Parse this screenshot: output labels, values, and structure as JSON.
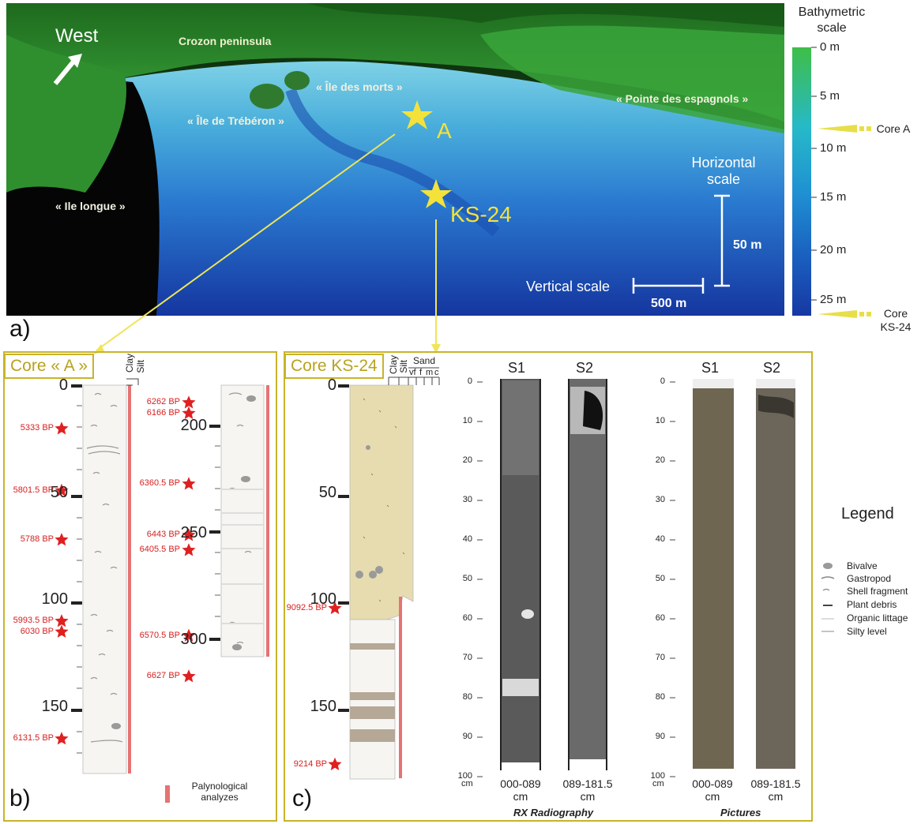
{
  "panel_a": {
    "letter": "a)",
    "labels": {
      "west": "West",
      "crozon": "Crozon peninsula",
      "ile_morts": "« Île des morts »",
      "ile_treberon": "« Île de Trébéron »",
      "pointe": "« Pointe des espagnols »",
      "ile_longue": "« Ile longue »",
      "site_a": "A",
      "site_ks": "KS-24",
      "horizontal_scale": "Horizontal scale",
      "horizontal_value": "50 m",
      "vertical_scale": "Vertical scale",
      "vertical_value": "500 m"
    },
    "bathymetric": {
      "title": "Bathymetric scale",
      "ticks": [
        "0 m",
        "5 m",
        "10 m",
        "15 m",
        "20 m",
        "25 m"
      ],
      "core_a": "Core A",
      "core_ks": "Core KS-24",
      "colors": [
        "#3fbe47",
        "#26b9c9",
        "#1f8fd2",
        "#1a5fbf",
        "#1638a3"
      ]
    }
  },
  "panel_b": {
    "letter": "b)",
    "title": "Core « A »",
    "grain": [
      "Clay",
      "Silt"
    ],
    "depth_ticks_left": [
      {
        "label": "0",
        "depth": 0
      },
      {
        "label": "50",
        "depth": 50
      },
      {
        "label": "100",
        "depth": 100
      },
      {
        "label": "150",
        "depth": 150
      }
    ],
    "depth_ticks_right": [
      {
        "label": "200",
        "depth": 200
      },
      {
        "label": "250",
        "depth": 250
      },
      {
        "label": "300",
        "depth": 300
      }
    ],
    "dates_left": [
      {
        "label": "5333 BP",
        "depth": 20
      },
      {
        "label": "5801.5 BP",
        "depth": 49
      },
      {
        "label": "5788 BP",
        "depth": 72
      },
      {
        "label": "5993.5 BP",
        "depth": 110
      },
      {
        "label": "6030 BP",
        "depth": 115
      },
      {
        "label": "6131.5 BP",
        "depth": 165
      }
    ],
    "dates_right": [
      {
        "label": "6262 BP",
        "depth": 189
      },
      {
        "label": "6166 BP",
        "depth": 194
      },
      {
        "label": "6360.5 BP",
        "depth": 227
      },
      {
        "label": "6443 BP",
        "depth": 251
      },
      {
        "label": "6405.5 BP",
        "depth": 258
      },
      {
        "label": "6570.5 BP",
        "depth": 298
      },
      {
        "label": "6627 BP",
        "depth": 317
      }
    ],
    "palyno_legend": "Palynological analyzes"
  },
  "panel_c": {
    "letter": "c)",
    "title": "Core KS-24",
    "grain": [
      "Clay",
      "Silt"
    ],
    "sand": "Sand",
    "sand_classes": [
      "vf",
      "f",
      "m",
      "c"
    ],
    "depth_ticks": [
      {
        "label": "0",
        "depth": 0
      },
      {
        "label": "50",
        "depth": 50
      },
      {
        "label": "100",
        "depth": 100
      },
      {
        "label": "150",
        "depth": 150
      }
    ],
    "dates": [
      {
        "label": "9092.5 BP",
        "depth": 104
      },
      {
        "label": "9214 BP",
        "depth": 177
      }
    ],
    "scale_ticks": [
      "0",
      "10",
      "20",
      "30",
      "40",
      "50",
      "60",
      "70",
      "80",
      "90",
      "100"
    ],
    "scale_unit": "cm",
    "rx": {
      "s1": "S1",
      "s2": "S2",
      "cap1": "000-089 cm",
      "cap2": "089-181.5 cm",
      "footer": "RX Radiography"
    },
    "pictures": {
      "s1": "S1",
      "s2": "S2",
      "cap1": "000-089 cm",
      "cap2": "089-181.5 cm",
      "footer": "Pictures"
    }
  },
  "legend": {
    "title": "Legend",
    "items": [
      "Bivalve",
      "Gastropod",
      "Shell fragment",
      "Plant debris",
      "Organic littage",
      "Silty level"
    ]
  }
}
